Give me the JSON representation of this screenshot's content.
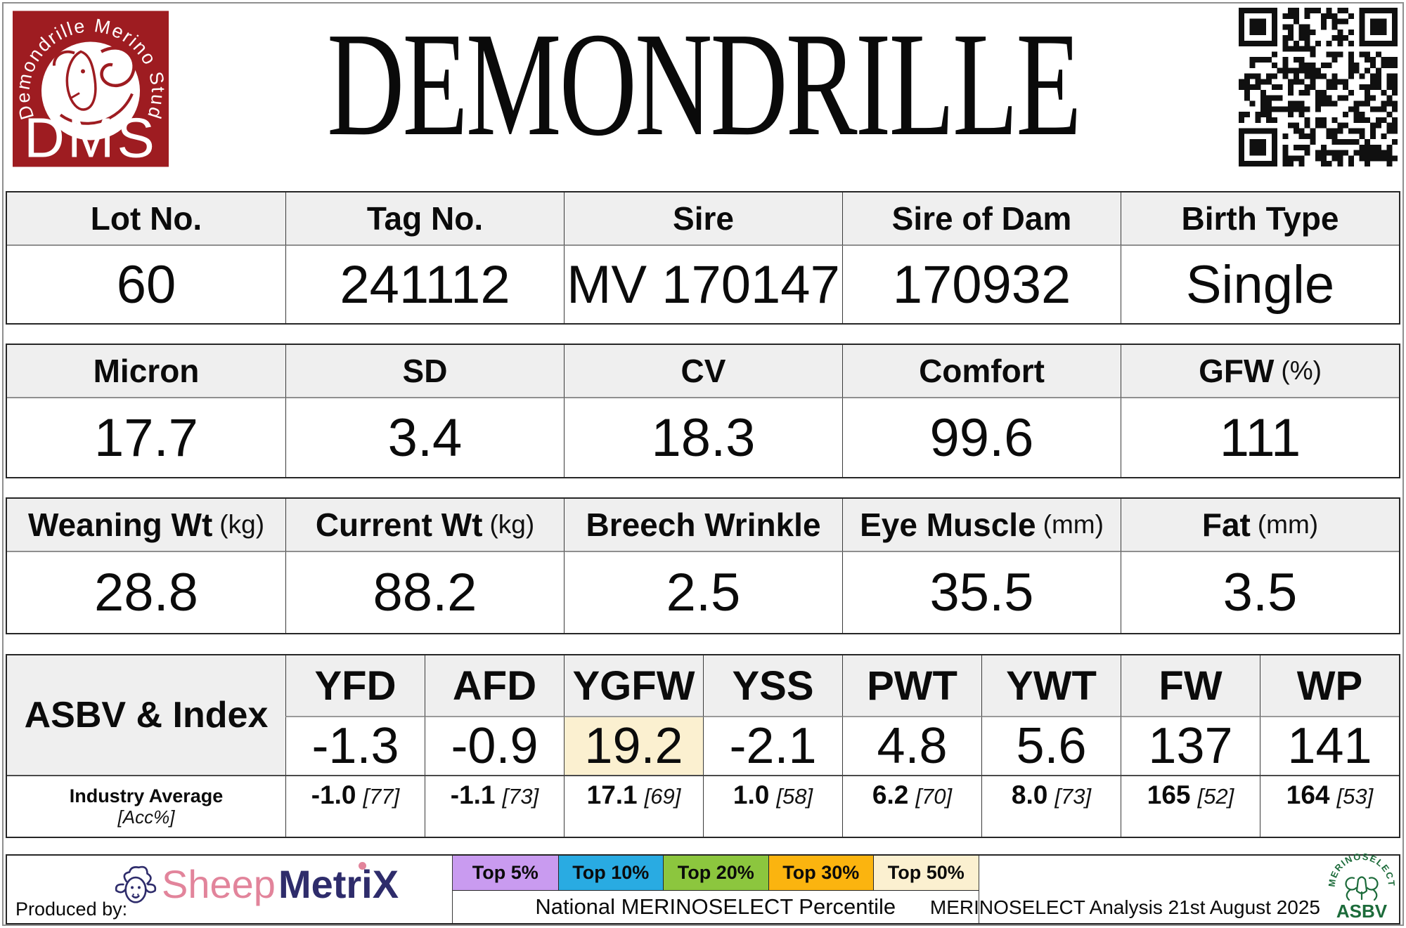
{
  "colors": {
    "dms_red": "#9E1C21",
    "sheep_pink": "#E2849B",
    "metrix_navy": "#2E2C6B",
    "asbv_green": "#1C6B3A",
    "header_gray": "#EFEFEF",
    "highlight_cream": "#FBF0D0"
  },
  "header": {
    "title": "DEMONDRILLE",
    "logo": {
      "stud_name": "Demondrille Merino Stud",
      "initials": "DMS"
    }
  },
  "identity": {
    "headers": [
      {
        "label": "Lot No.",
        "unit": ""
      },
      {
        "label": "Tag No.",
        "unit": ""
      },
      {
        "label": "Sire",
        "unit": ""
      },
      {
        "label": "Sire of Dam",
        "unit": ""
      },
      {
        "label": "Birth Type",
        "unit": ""
      }
    ],
    "values": [
      "60",
      "241112",
      "MV 170147",
      "170932",
      "Single"
    ]
  },
  "wool": {
    "headers": [
      {
        "label": "Micron",
        "unit": ""
      },
      {
        "label": "SD",
        "unit": ""
      },
      {
        "label": "CV",
        "unit": ""
      },
      {
        "label": "Comfort",
        "unit": ""
      },
      {
        "label": "GFW",
        "unit": "(%)"
      }
    ],
    "values": [
      "17.7",
      "3.4",
      "18.3",
      "99.6",
      "111"
    ]
  },
  "body_traits": {
    "headers": [
      {
        "label": "Weaning Wt",
        "unit": "(kg)"
      },
      {
        "label": "Current Wt",
        "unit": "(kg)"
      },
      {
        "label": "Breech Wrinkle",
        "unit": ""
      },
      {
        "label": "Eye Muscle",
        "unit": "(mm)"
      },
      {
        "label": "Fat",
        "unit": "(mm)"
      }
    ],
    "values": [
      "28.8",
      "88.2",
      "2.5",
      "35.5",
      "3.5"
    ]
  },
  "asbv": {
    "corner_label": "ASBV & Index",
    "industry_label": "Industry Average",
    "acc_label": "[Acc%]",
    "columns": [
      {
        "trait": "YFD",
        "value": "-1.3",
        "avg": "-1.0",
        "acc": "[77]",
        "highlight": false
      },
      {
        "trait": "AFD",
        "value": "-0.9",
        "avg": "-1.1",
        "acc": "[73]",
        "highlight": false
      },
      {
        "trait": "YGFW",
        "value": "19.2",
        "avg": "17.1",
        "acc": "[69]",
        "highlight": true
      },
      {
        "trait": "YSS",
        "value": "-2.1",
        "avg": "1.0",
        "acc": "[58]",
        "highlight": false
      },
      {
        "trait": "PWT",
        "value": "4.8",
        "avg": "6.2",
        "acc": "[70]",
        "highlight": false
      },
      {
        "trait": "YWT",
        "value": "5.6",
        "avg": "8.0",
        "acc": "[73]",
        "highlight": false
      },
      {
        "trait": "FW",
        "value": "137",
        "avg": "165",
        "acc": "[52]",
        "highlight": false
      },
      {
        "trait": "WP",
        "value": "141",
        "avg": "164",
        "acc": "[53]",
        "highlight": false
      }
    ]
  },
  "footer": {
    "produced_by": "Produced by:",
    "sheepmetrix": {
      "sheep": "Sheep",
      "metrix": "MetriX"
    },
    "legend": [
      {
        "label": "Top 5%",
        "color": "#C99BF0"
      },
      {
        "label": "Top 10%",
        "color": "#29ABE2"
      },
      {
        "label": "Top 20%",
        "color": "#8CC63E"
      },
      {
        "label": "Top 30%",
        "color": "#FBB40F"
      },
      {
        "label": "Top 50%",
        "color": "#FBF0D0"
      }
    ],
    "percentile_label": "National MERINOSELECT Percentile",
    "analysis_label": "MERINOSELECT Analysis 21st August 2025",
    "merinoselect_logo": {
      "arc": "MERINOSELECT",
      "text": "ASBV"
    }
  }
}
